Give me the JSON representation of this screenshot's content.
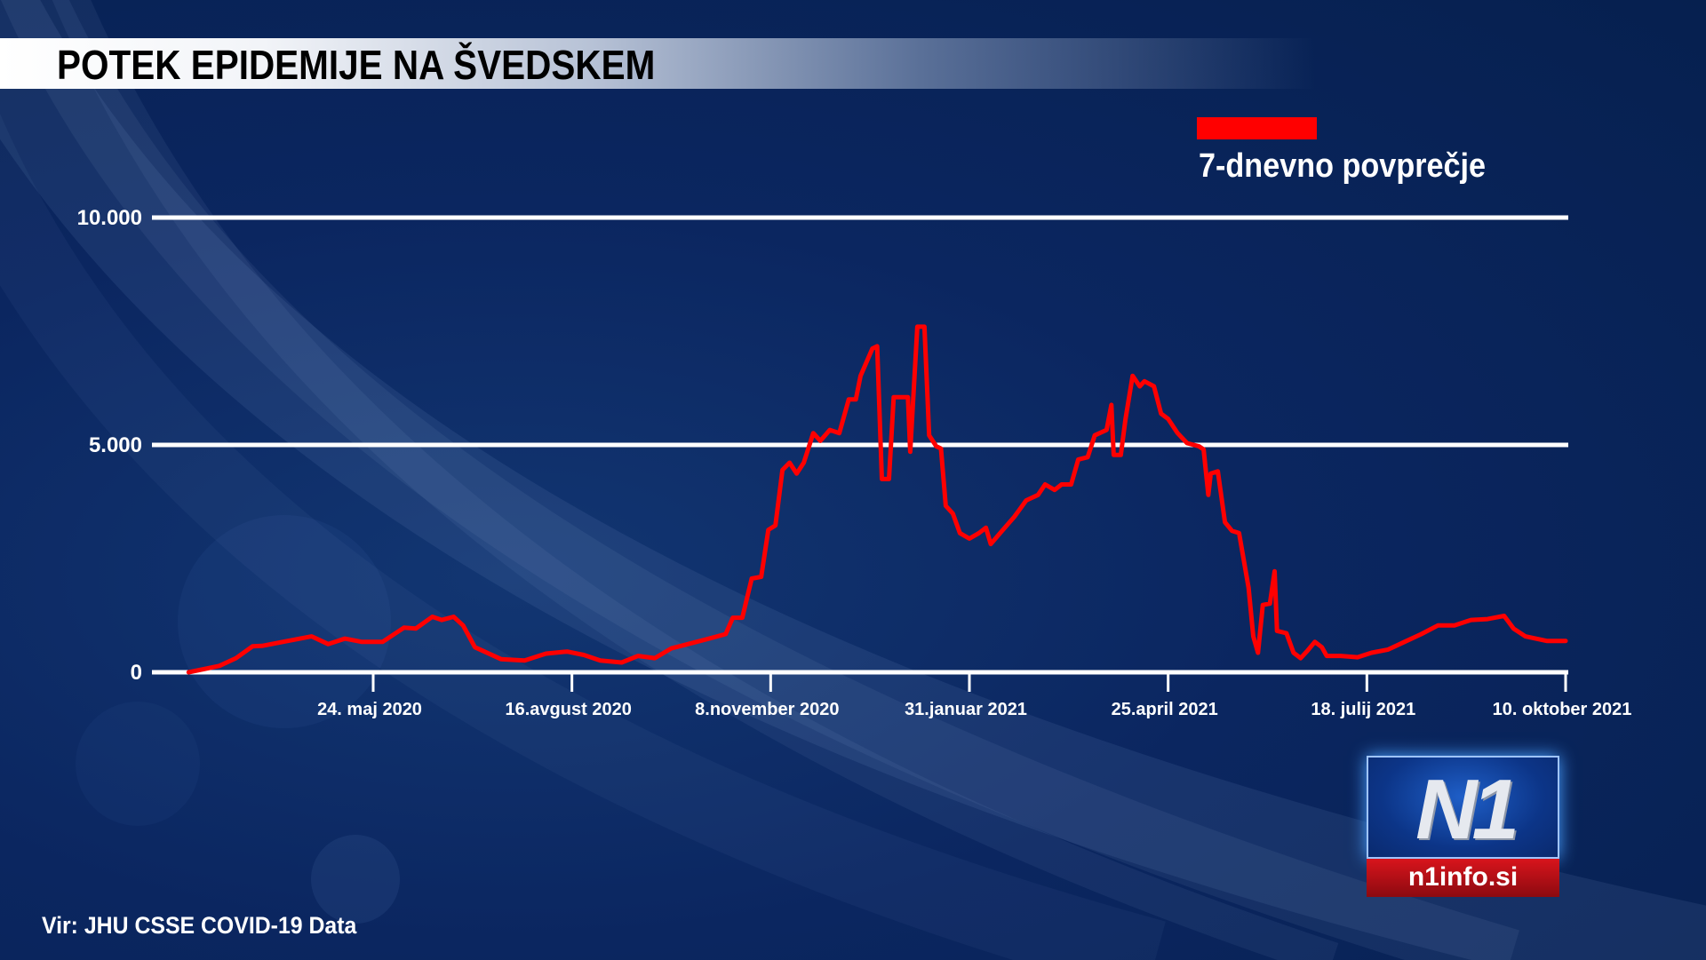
{
  "title": "POTEK EPIDEMIJE NA ŠVEDSKEM",
  "source": "Vir: JHU CSSE COVID-19 Data",
  "logo": {
    "mark": "N1",
    "site": "n1info.si"
  },
  "colors": {
    "line": "#ff0000",
    "grid": "#ffffff",
    "background": "#0b2660"
  },
  "chart_data": {
    "type": "line",
    "title": "POTEK EPIDEMIJE NA ŠVEDSKEM",
    "xlabel": "",
    "ylabel": "",
    "ylim": [
      0,
      10000
    ],
    "grid": true,
    "legend_position": "top-right",
    "y_ticks": [
      {
        "value": 0,
        "label": "0"
      },
      {
        "value": 5000,
        "label": "5.000"
      },
      {
        "value": 10000,
        "label": "10.000"
      }
    ],
    "x_ticks": [
      {
        "date": "2020-05-24",
        "label": "24. maj 2020"
      },
      {
        "date": "2020-08-16",
        "label": "16.avgust 2020"
      },
      {
        "date": "2020-11-08",
        "label": "8.november 2020"
      },
      {
        "date": "2021-01-31",
        "label": "31.januar 2021"
      },
      {
        "date": "2021-04-25",
        "label": "25.april 2021"
      },
      {
        "date": "2021-07-18",
        "label": "18. julij 2021"
      },
      {
        "date": "2021-10-10",
        "label": "10. oktober 2021"
      }
    ],
    "series": [
      {
        "name": "7-dnevno povprečje",
        "color": "#ff0000",
        "points": [
          [
            "2020-03-07",
            0
          ],
          [
            "2020-03-20",
            140
          ],
          [
            "2020-03-27",
            310
          ],
          [
            "2020-04-03",
            570
          ],
          [
            "2020-04-07",
            580
          ],
          [
            "2020-04-16",
            670
          ],
          [
            "2020-04-28",
            790
          ],
          [
            "2020-05-05",
            620
          ],
          [
            "2020-05-12",
            740
          ],
          [
            "2020-05-19",
            670
          ],
          [
            "2020-05-28",
            670
          ],
          [
            "2020-06-06",
            980
          ],
          [
            "2020-06-11",
            960
          ],
          [
            "2020-06-18",
            1220
          ],
          [
            "2020-06-22",
            1150
          ],
          [
            "2020-06-27",
            1220
          ],
          [
            "2020-07-01",
            1030
          ],
          [
            "2020-07-06",
            550
          ],
          [
            "2020-07-17",
            290
          ],
          [
            "2020-07-27",
            260
          ],
          [
            "2020-08-05",
            410
          ],
          [
            "2020-08-14",
            455
          ],
          [
            "2020-08-21",
            380
          ],
          [
            "2020-08-28",
            260
          ],
          [
            "2020-09-06",
            215
          ],
          [
            "2020-09-13",
            360
          ],
          [
            "2020-09-20",
            310
          ],
          [
            "2020-09-27",
            525
          ],
          [
            "2020-10-04",
            620
          ],
          [
            "2020-10-13",
            740
          ],
          [
            "2020-10-20",
            840
          ],
          [
            "2020-10-23",
            1200
          ],
          [
            "2020-10-27",
            1200
          ],
          [
            "2020-10-31",
            2060
          ],
          [
            "2020-11-04",
            2100
          ],
          [
            "2020-11-07",
            3130
          ],
          [
            "2020-11-10",
            3230
          ],
          [
            "2020-11-13",
            4450
          ],
          [
            "2020-11-16",
            4610
          ],
          [
            "2020-11-19",
            4370
          ],
          [
            "2020-11-22",
            4610
          ],
          [
            "2020-11-26",
            5260
          ],
          [
            "2020-11-29",
            5090
          ],
          [
            "2020-12-03",
            5330
          ],
          [
            "2020-12-07",
            5260
          ],
          [
            "2020-12-11",
            6000
          ],
          [
            "2020-12-14",
            6000
          ],
          [
            "2020-12-16",
            6520
          ],
          [
            "2020-12-21",
            7120
          ],
          [
            "2020-12-23",
            7170
          ],
          [
            "2020-12-25",
            4250
          ],
          [
            "2020-12-28",
            4250
          ],
          [
            "2020-12-30",
            6050
          ],
          [
            "2021-01-05",
            6050
          ],
          [
            "2021-01-06",
            4850
          ],
          [
            "2021-01-09",
            7600
          ],
          [
            "2021-01-12",
            7600
          ],
          [
            "2021-01-14",
            5210
          ],
          [
            "2021-01-17",
            4970
          ],
          [
            "2021-01-19",
            4920
          ],
          [
            "2021-01-21",
            3660
          ],
          [
            "2021-01-24",
            3490
          ],
          [
            "2021-01-27",
            3060
          ],
          [
            "2021-01-31",
            2940
          ],
          [
            "2021-02-04",
            3060
          ],
          [
            "2021-02-07",
            3180
          ],
          [
            "2021-02-09",
            2820
          ],
          [
            "2021-02-13",
            3060
          ],
          [
            "2021-02-19",
            3420
          ],
          [
            "2021-02-24",
            3780
          ],
          [
            "2021-03-01",
            3900
          ],
          [
            "2021-03-04",
            4130
          ],
          [
            "2021-03-08",
            4010
          ],
          [
            "2021-03-11",
            4130
          ],
          [
            "2021-03-15",
            4130
          ],
          [
            "2021-03-18",
            4680
          ],
          [
            "2021-03-22",
            4730
          ],
          [
            "2021-03-25",
            5210
          ],
          [
            "2021-03-30",
            5330
          ],
          [
            "2021-04-01",
            5880
          ],
          [
            "2021-04-02",
            4780
          ],
          [
            "2021-04-05",
            4780
          ],
          [
            "2021-04-07",
            5570
          ],
          [
            "2021-04-10",
            6520
          ],
          [
            "2021-04-13",
            6290
          ],
          [
            "2021-04-15",
            6400
          ],
          [
            "2021-04-19",
            6290
          ],
          [
            "2021-04-22",
            5690
          ],
          [
            "2021-04-25",
            5570
          ],
          [
            "2021-04-29",
            5260
          ],
          [
            "2021-05-03",
            5040
          ],
          [
            "2021-05-08",
            4970
          ],
          [
            "2021-05-10",
            4900
          ],
          [
            "2021-05-12",
            3900
          ],
          [
            "2021-05-13",
            4370
          ],
          [
            "2021-05-16",
            4420
          ],
          [
            "2021-05-19",
            3300
          ],
          [
            "2021-05-22",
            3110
          ],
          [
            "2021-05-25",
            3060
          ],
          [
            "2021-05-29",
            1860
          ],
          [
            "2021-05-31",
            790
          ],
          [
            "2021-06-02",
            430
          ],
          [
            "2021-06-04",
            1480
          ],
          [
            "2021-06-07",
            1510
          ],
          [
            "2021-06-09",
            2220
          ],
          [
            "2021-06-10",
            910
          ],
          [
            "2021-06-14",
            860
          ],
          [
            "2021-06-17",
            430
          ],
          [
            "2021-06-20",
            310
          ],
          [
            "2021-06-23",
            480
          ],
          [
            "2021-06-26",
            670
          ],
          [
            "2021-06-29",
            550
          ],
          [
            "2021-07-01",
            360
          ],
          [
            "2021-07-07",
            360
          ],
          [
            "2021-07-14",
            330
          ],
          [
            "2021-07-20",
            430
          ],
          [
            "2021-07-27",
            500
          ],
          [
            "2021-08-03",
            670
          ],
          [
            "2021-08-10",
            840
          ],
          [
            "2021-08-17",
            1030
          ],
          [
            "2021-08-24",
            1030
          ],
          [
            "2021-08-31",
            1150
          ],
          [
            "2021-09-07",
            1170
          ],
          [
            "2021-09-14",
            1240
          ],
          [
            "2021-09-18",
            960
          ],
          [
            "2021-09-23",
            790
          ],
          [
            "2021-10-02",
            690
          ],
          [
            "2021-10-10",
            690
          ]
        ]
      }
    ]
  }
}
